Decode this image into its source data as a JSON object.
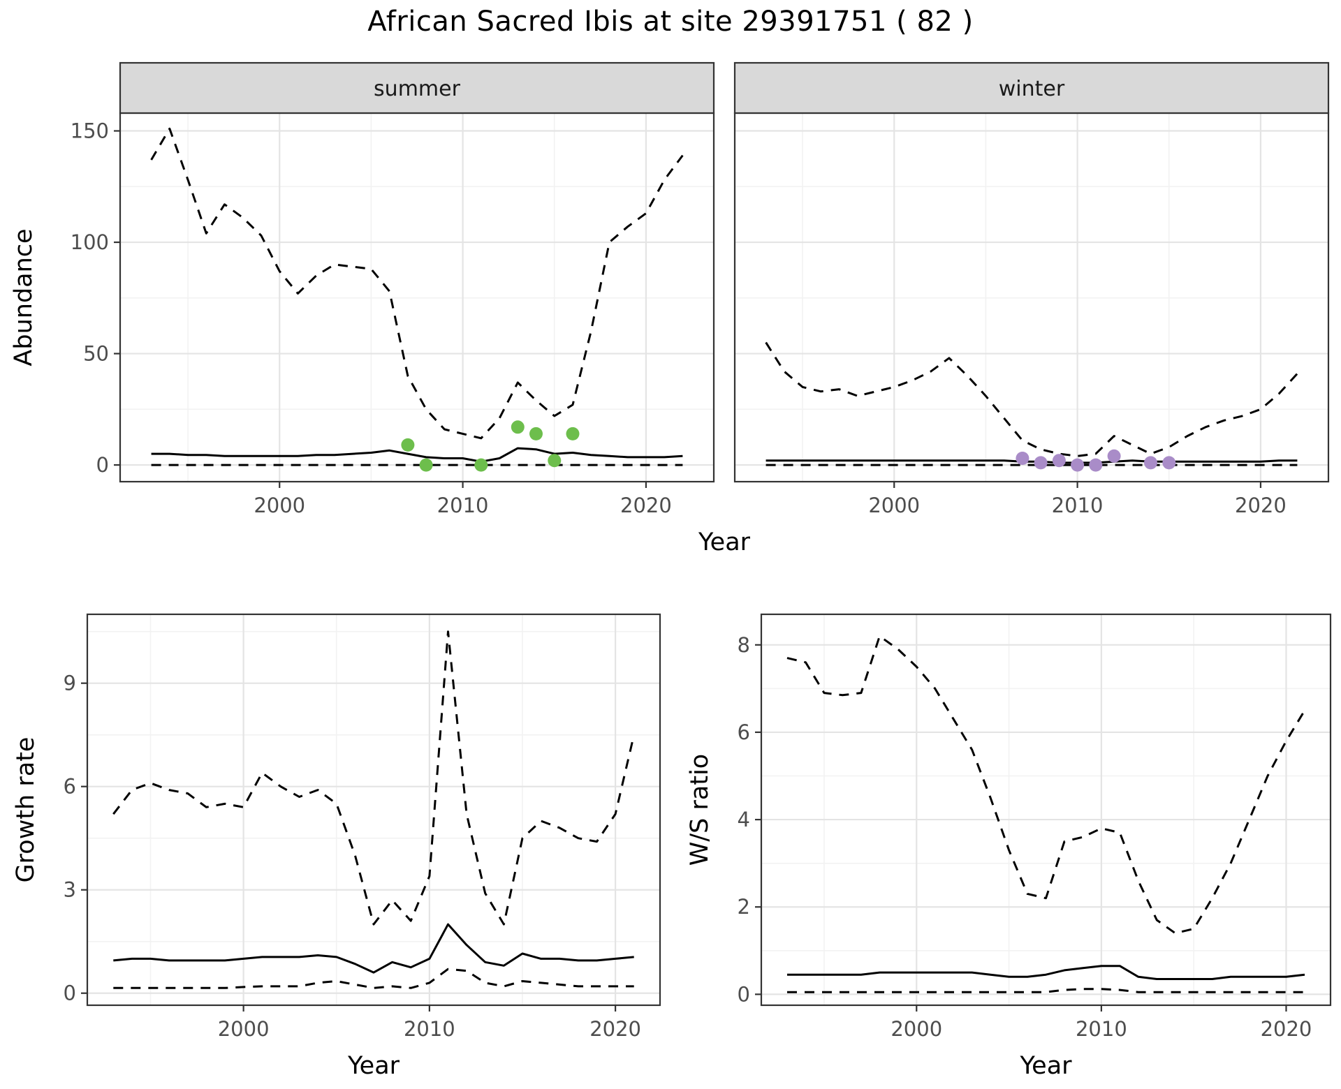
{
  "title": "African Sacred Ibis at site 29391751 ( 82 )",
  "colors": {
    "line": "#000000",
    "summer_points": "#6dbe4c",
    "winter_points": "#a98cc8",
    "strip_fill": "#d9d9d9",
    "panel_border": "#333333",
    "grid_major": "#e4e4e4",
    "grid_minor": "#f2f2f2",
    "tick_text": "#4d4d4d"
  },
  "chart_data": [
    {
      "id": "abundance-summer",
      "type": "line",
      "facet_label": "summer",
      "ylabel": "Abundance",
      "xlabel": "Year",
      "xticks": [
        2000,
        2010,
        2020
      ],
      "yticks": [
        0,
        50,
        100,
        150
      ],
      "xlim": [
        1991.3,
        2023.7
      ],
      "ylim": [
        -7.5,
        158
      ],
      "x": [
        1993,
        1994,
        1995,
        1996,
        1997,
        1998,
        1999,
        2000,
        2001,
        2002,
        2003,
        2004,
        2005,
        2006,
        2007,
        2008,
        2009,
        2010,
        2011,
        2012,
        2013,
        2014,
        2015,
        2016,
        2017,
        2018,
        2019,
        2020,
        2021,
        2022
      ],
      "series": [
        {
          "name": "upper-ci",
          "style": "dashed",
          "values": [
            137,
            151,
            128,
            104,
            117,
            111,
            103,
            87,
            77,
            85,
            90,
            89,
            88,
            78,
            40,
            25,
            16,
            14,
            12,
            21,
            37,
            29,
            22,
            27,
            60,
            100,
            107,
            113,
            128,
            139
          ]
        },
        {
          "name": "median",
          "style": "solid",
          "values": [
            5,
            5,
            4.5,
            4.5,
            4,
            4,
            4,
            4,
            4,
            4.5,
            4.5,
            5,
            5.5,
            6.5,
            5,
            3.5,
            3,
            3,
            1.5,
            3,
            7.5,
            7,
            5,
            5.5,
            4.5,
            4,
            3.5,
            3.5,
            3.5,
            4
          ]
        },
        {
          "name": "lower-ci",
          "style": "dashed",
          "values": [
            0,
            0,
            0,
            0,
            0,
            0,
            0,
            0,
            0,
            0,
            0,
            0,
            0,
            0,
            0,
            0,
            0,
            0,
            0,
            0,
            0,
            0,
            0,
            0,
            0,
            0,
            0,
            0,
            0,
            0
          ]
        }
      ],
      "points": {
        "name": "summer-observations",
        "color": "#6dbe4c",
        "x": [
          2007,
          2008,
          2011,
          2013,
          2014,
          2015,
          2016
        ],
        "y": [
          9,
          0,
          0,
          17,
          14,
          2,
          14
        ]
      }
    },
    {
      "id": "abundance-winter",
      "type": "line",
      "facet_label": "winter",
      "ylabel": null,
      "xlabel": "Year",
      "xticks": [
        2000,
        2010,
        2020
      ],
      "yticks": [
        0,
        50,
        100,
        150
      ],
      "xlim": [
        1991.3,
        2023.7
      ],
      "ylim": [
        -7.5,
        158
      ],
      "x": [
        1993,
        1994,
        1995,
        1996,
        1997,
        1998,
        1999,
        2000,
        2001,
        2002,
        2003,
        2004,
        2005,
        2006,
        2007,
        2008,
        2009,
        2010,
        2011,
        2012,
        2013,
        2014,
        2015,
        2016,
        2017,
        2018,
        2019,
        2020,
        2021,
        2022
      ],
      "series": [
        {
          "name": "upper-ci",
          "style": "dashed",
          "values": [
            55,
            42,
            35,
            33,
            34,
            31,
            33,
            35,
            38,
            42,
            48,
            40,
            31,
            21,
            11,
            7,
            5,
            4,
            5,
            13,
            9,
            5,
            8,
            13,
            17,
            20,
            22,
            25,
            32,
            41
          ]
        },
        {
          "name": "median",
          "style": "solid",
          "values": [
            2,
            2,
            2,
            2,
            2,
            2,
            2,
            2,
            2,
            2,
            2,
            2,
            2,
            2,
            1.5,
            1.5,
            1,
            1,
            1,
            1.5,
            2,
            1.5,
            1.5,
            1.5,
            1.5,
            1.5,
            1.5,
            1.5,
            2,
            2
          ]
        },
        {
          "name": "lower-ci",
          "style": "dashed",
          "values": [
            0,
            0,
            0,
            0,
            0,
            0,
            0,
            0,
            0,
            0,
            0,
            0,
            0,
            0,
            0,
            0,
            0,
            0,
            0,
            0,
            0,
            0,
            0,
            0,
            0,
            0,
            0,
            0,
            0,
            0
          ]
        }
      ],
      "points": {
        "name": "winter-observations",
        "color": "#a98cc8",
        "x": [
          2007,
          2008,
          2009,
          2010,
          2011,
          2012,
          2014,
          2015
        ],
        "y": [
          3,
          1,
          2,
          0,
          0,
          4,
          1,
          1
        ]
      }
    },
    {
      "id": "growth-rate",
      "type": "line",
      "facet_label": null,
      "ylabel": "Growth rate",
      "xlabel": "Year",
      "xticks": [
        2000,
        2010,
        2020
      ],
      "yticks": [
        0,
        3,
        6,
        9
      ],
      "xlim": [
        1991.6,
        2022.4
      ],
      "ylim": [
        -0.35,
        11.0
      ],
      "x": [
        1993,
        1994,
        1995,
        1996,
        1997,
        1998,
        1999,
        2000,
        2001,
        2002,
        2003,
        2004,
        2005,
        2006,
        2007,
        2008,
        2009,
        2010,
        2011,
        2012,
        2013,
        2014,
        2015,
        2016,
        2017,
        2018,
        2019,
        2020,
        2021
      ],
      "series": [
        {
          "name": "upper-ci",
          "style": "dashed",
          "values": [
            5.2,
            5.9,
            6.1,
            5.9,
            5.8,
            5.4,
            5.5,
            5.4,
            6.4,
            6.0,
            5.7,
            5.9,
            5.5,
            4.0,
            2.0,
            2.7,
            2.1,
            3.4,
            10.5,
            5.2,
            2.9,
            2.0,
            4.5,
            5.0,
            4.8,
            4.5,
            4.4,
            5.2,
            7.5
          ]
        },
        {
          "name": "median",
          "style": "solid",
          "values": [
            0.95,
            1.0,
            1.0,
            0.95,
            0.95,
            0.95,
            0.95,
            1.0,
            1.05,
            1.05,
            1.05,
            1.1,
            1.05,
            0.85,
            0.6,
            0.9,
            0.75,
            1.0,
            2.0,
            1.4,
            0.9,
            0.8,
            1.15,
            1.0,
            1.0,
            0.95,
            0.95,
            1.0,
            1.05
          ]
        },
        {
          "name": "lower-ci",
          "style": "dashed",
          "values": [
            0.15,
            0.15,
            0.15,
            0.15,
            0.15,
            0.15,
            0.15,
            0.18,
            0.2,
            0.2,
            0.2,
            0.3,
            0.35,
            0.25,
            0.15,
            0.2,
            0.15,
            0.3,
            0.7,
            0.65,
            0.3,
            0.2,
            0.35,
            0.3,
            0.25,
            0.2,
            0.2,
            0.2,
            0.2
          ]
        }
      ],
      "points": null
    },
    {
      "id": "ws-ratio",
      "type": "line",
      "facet_label": null,
      "ylabel": "W/S ratio",
      "xlabel": "Year",
      "xticks": [
        2000,
        2010,
        2020
      ],
      "yticks": [
        0,
        2,
        4,
        6,
        8
      ],
      "xlim": [
        1991.6,
        2022.4
      ],
      "ylim": [
        -0.25,
        8.7
      ],
      "x": [
        1993,
        1994,
        1995,
        1996,
        1997,
        1998,
        1999,
        2000,
        2001,
        2002,
        2003,
        2004,
        2005,
        2006,
        2007,
        2008,
        2009,
        2010,
        2011,
        2012,
        2013,
        2014,
        2015,
        2016,
        2017,
        2018,
        2019,
        2020,
        2021
      ],
      "series": [
        {
          "name": "upper-ci",
          "style": "dashed",
          "values": [
            7.7,
            7.6,
            6.9,
            6.85,
            6.9,
            8.2,
            7.9,
            7.5,
            7.0,
            6.3,
            5.6,
            4.5,
            3.3,
            2.3,
            2.2,
            3.5,
            3.6,
            3.8,
            3.7,
            2.6,
            1.7,
            1.4,
            1.5,
            2.2,
            3.0,
            4.0,
            5.0,
            5.8,
            6.5
          ]
        },
        {
          "name": "median",
          "style": "solid",
          "values": [
            0.45,
            0.45,
            0.45,
            0.45,
            0.45,
            0.5,
            0.5,
            0.5,
            0.5,
            0.5,
            0.5,
            0.45,
            0.4,
            0.4,
            0.45,
            0.55,
            0.6,
            0.65,
            0.65,
            0.4,
            0.35,
            0.35,
            0.35,
            0.35,
            0.4,
            0.4,
            0.4,
            0.4,
            0.45
          ]
        },
        {
          "name": "lower-ci",
          "style": "dashed",
          "values": [
            0.05,
            0.05,
            0.05,
            0.05,
            0.05,
            0.05,
            0.05,
            0.05,
            0.05,
            0.05,
            0.05,
            0.05,
            0.05,
            0.05,
            0.05,
            0.1,
            0.12,
            0.12,
            0.1,
            0.05,
            0.05,
            0.05,
            0.05,
            0.05,
            0.05,
            0.05,
            0.05,
            0.05,
            0.05
          ]
        }
      ],
      "points": null
    }
  ]
}
